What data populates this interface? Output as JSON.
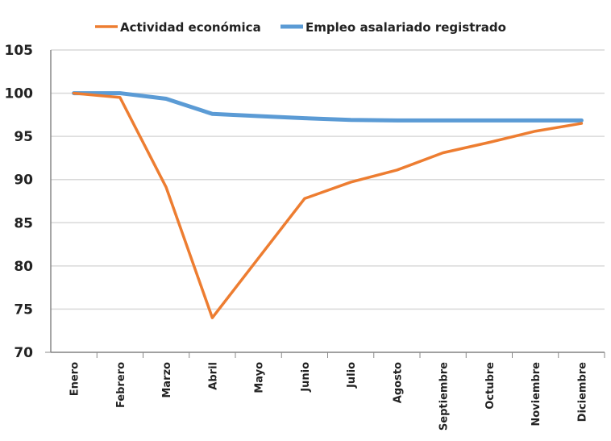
{
  "chart_data": {
    "type": "line",
    "title": "",
    "xlabel": "",
    "ylabel": "",
    "ylim": [
      70,
      105
    ],
    "yticks": [
      70,
      75,
      80,
      85,
      90,
      95,
      100,
      105
    ],
    "grid": true,
    "legend_position": "top",
    "categories": [
      "Enero",
      "Febrero",
      "Marzo",
      "Abril",
      "Mayo",
      "Junio",
      "Julio",
      "Agosto",
      "Septiembre",
      "Octubre",
      "Noviembre",
      "Diciembre"
    ],
    "series": [
      {
        "name": "Actividad económica",
        "color": "#ED7D31",
        "values": [
          100,
          99.5,
          89.1,
          74.0,
          80.9,
          87.8,
          89.7,
          91.1,
          93.1,
          94.3,
          95.6,
          96.5
        ]
      },
      {
        "name": "Empleo asalariado registrado",
        "color": "#5B9BD5",
        "values": [
          100,
          100,
          99.35,
          97.6,
          97.35,
          97.1,
          96.9,
          96.85,
          96.85,
          96.85,
          96.85,
          96.85
        ]
      }
    ]
  }
}
